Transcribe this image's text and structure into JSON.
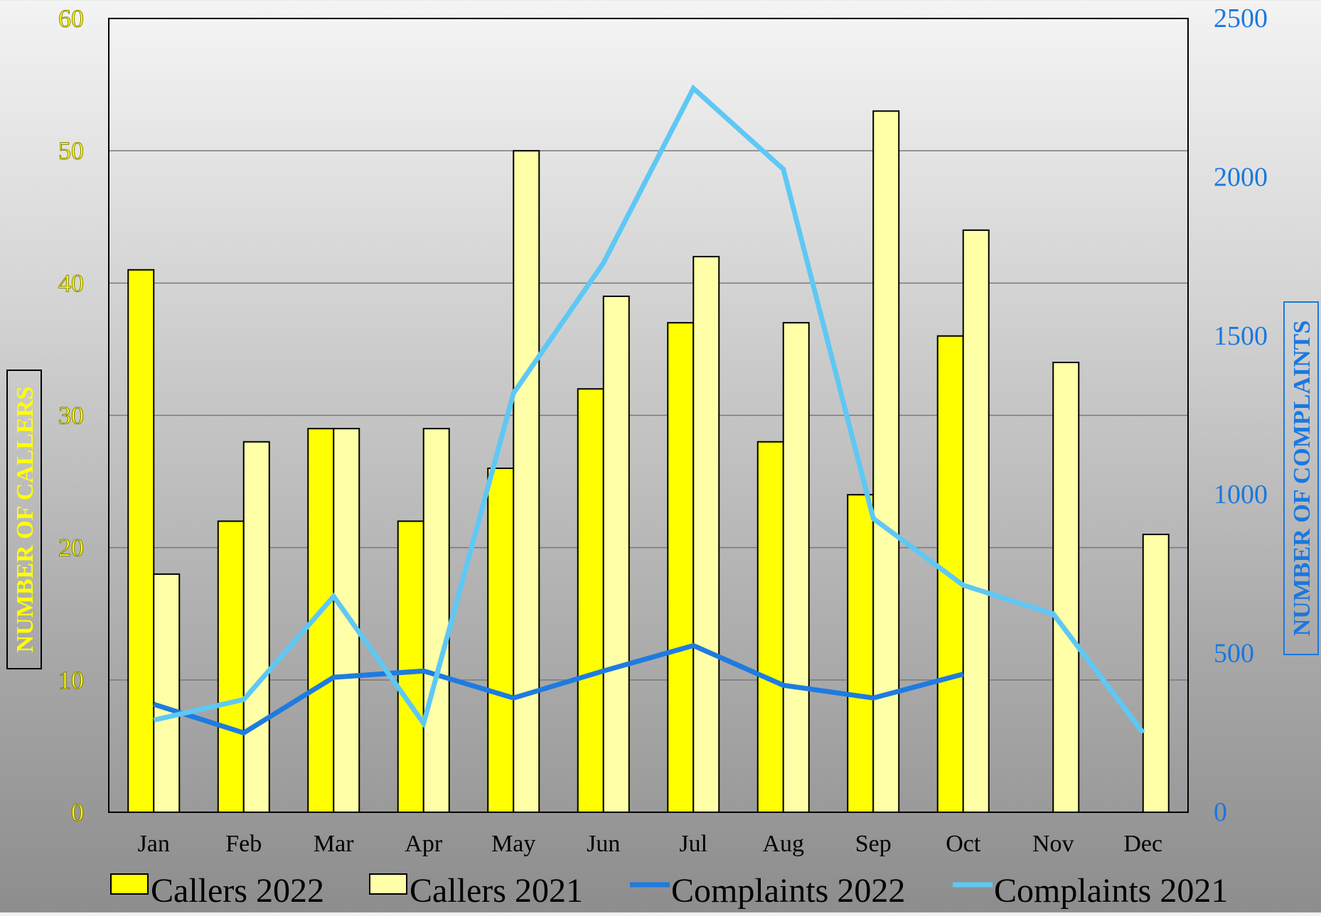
{
  "chart_data": {
    "type": "bar",
    "categories": [
      "Jan",
      "Feb",
      "Mar",
      "Apr",
      "May",
      "Jun",
      "Jul",
      "Aug",
      "Sep",
      "Oct",
      "Nov",
      "Dec"
    ],
    "series": [
      {
        "name": "Callers 2022",
        "type": "bar",
        "axis": "left",
        "color": "#ffff00",
        "values": [
          41,
          22,
          29,
          22,
          26,
          32,
          37,
          28,
          24,
          36,
          null,
          null
        ]
      },
      {
        "name": "Callers 2021",
        "type": "bar",
        "axis": "left",
        "color": "#ffffa8",
        "values": [
          18,
          28,
          29,
          29,
          50,
          39,
          42,
          37,
          53,
          44,
          34,
          21
        ]
      },
      {
        "name": "Complaints 2022",
        "type": "line",
        "axis": "right",
        "color": "#1e7be0",
        "values": [
          340,
          250,
          425,
          445,
          360,
          445,
          525,
          400,
          360,
          435,
          null,
          null
        ]
      },
      {
        "name": "Complaints 2021",
        "type": "line",
        "axis": "right",
        "color": "#5ec8f5",
        "values": [
          290,
          355,
          680,
          280,
          1320,
          1730,
          2280,
          2025,
          925,
          715,
          625,
          250
        ]
      }
    ],
    "y_left": {
      "label": "NUMBER OF CALLERS",
      "ticks": [
        "0",
        "10",
        "20",
        "30",
        "40",
        "50",
        "60"
      ],
      "min": 0,
      "max": 60,
      "color": "#ffff00"
    },
    "y_right": {
      "label": "NUMBER OF COMPLAINTS",
      "ticks": [
        "0",
        "500",
        "1000",
        "1500",
        "2000",
        "2500"
      ],
      "min": 0,
      "max": 2500,
      "color": "#1a78e0"
    },
    "grid": true,
    "legend": "bottom"
  }
}
